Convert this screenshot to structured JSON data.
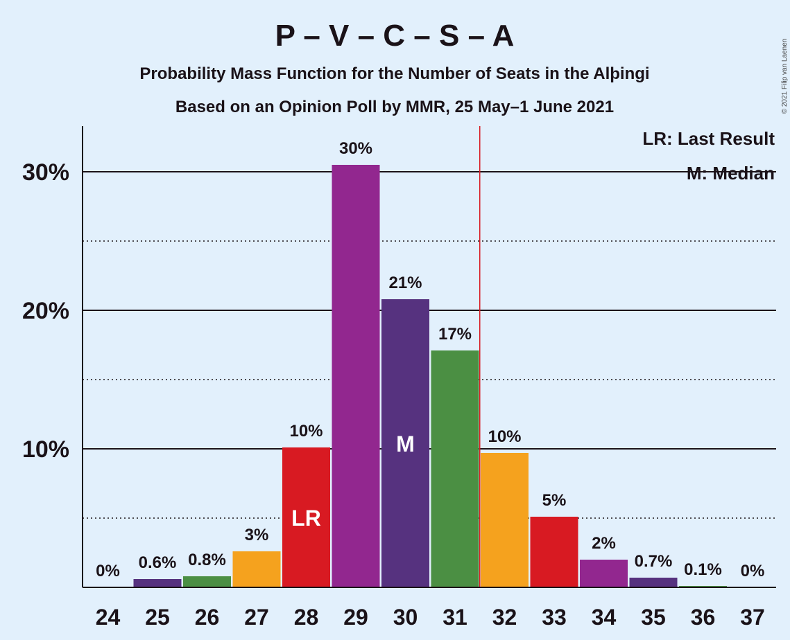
{
  "chart_data": {
    "type": "bar",
    "title": "P – V – C – S – A",
    "subtitle_1": "Probability Mass Function for the Number of Seats in the Alþingi",
    "subtitle_2": "Based on an Opinion Poll by MMR, 25 May–1 June 2021",
    "copyright": "© 2021 Filip van Laenen",
    "categories": [
      24,
      25,
      26,
      27,
      28,
      29,
      30,
      31,
      32,
      33,
      34,
      35,
      36,
      37
    ],
    "values": [
      0,
      0.6,
      0.8,
      2.6,
      10.1,
      30.5,
      20.8,
      17.1,
      9.7,
      5.1,
      2.0,
      0.7,
      0.1,
      0
    ],
    "value_labels": [
      "0%",
      "0.6%",
      "0.8%",
      "3%",
      "10%",
      "30%",
      "21%",
      "17%",
      "10%",
      "5%",
      "2%",
      "0.7%",
      "0.1%",
      "0%"
    ],
    "bar_colors": [
      "#92278f",
      "#56327f",
      "#4b8f43",
      "#f5a21e",
      "#d81a22",
      "#92278f",
      "#56327f",
      "#4b8f43",
      "#f5a21e",
      "#d81a22",
      "#92278f",
      "#56327f",
      "#4b8f43",
      "#f5a21e"
    ],
    "ylim": [
      0,
      33
    ],
    "yticks": [
      10,
      20,
      30
    ],
    "ytick_labels": [
      "10%",
      "20%",
      "30%"
    ],
    "minor_gridlines": [
      5,
      15,
      25
    ],
    "last_result_seat": 28,
    "last_result_label": "LR",
    "median_seat": 30,
    "median_label": "M",
    "majority_line_after_seat": 31,
    "majority_line_color": "#d81a22",
    "legend": [
      "LR: Last Result",
      "M: Median"
    ],
    "legend_position": "top-right",
    "grid": true
  }
}
